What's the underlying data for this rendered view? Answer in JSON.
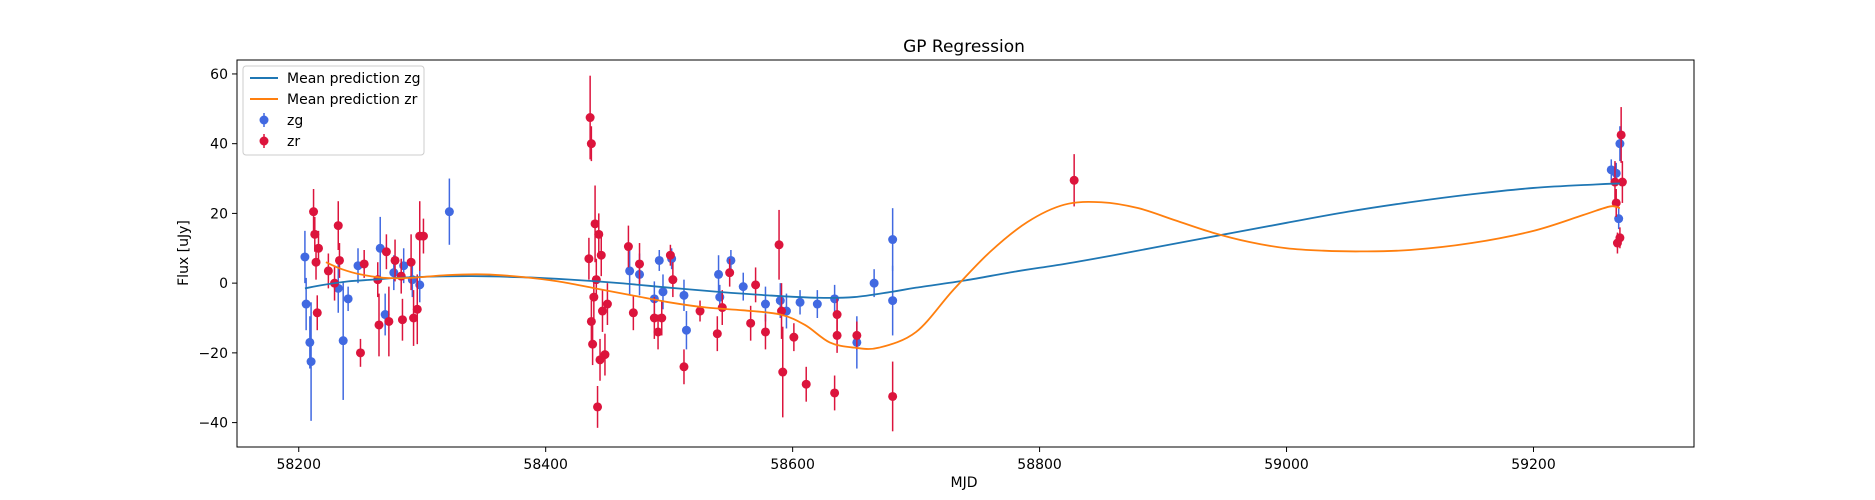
{
  "chart_data": {
    "type": "scatter",
    "title": "GP Regression",
    "xlabel": "MJD",
    "ylabel": "Flux [uJy]",
    "xlim": [
      58150,
      59330
    ],
    "ylim": [
      -47,
      64
    ],
    "xticks": [
      {
        "value": 58200,
        "label": "58200"
      },
      {
        "value": 58400,
        "label": "58400"
      },
      {
        "value": 58600,
        "label": "58600"
      },
      {
        "value": 58800,
        "label": "58800"
      },
      {
        "value": 59000,
        "label": "59000"
      },
      {
        "value": 59200,
        "label": "59200"
      }
    ],
    "yticks": [
      {
        "value": -40,
        "label": "−40"
      },
      {
        "value": -20,
        "label": "−20"
      },
      {
        "value": 0,
        "label": "0"
      },
      {
        "value": 20,
        "label": "20"
      },
      {
        "value": 40,
        "label": "40"
      },
      {
        "value": 60,
        "label": "60"
      }
    ],
    "grid": false,
    "legend_position": "top-left",
    "legend": [
      {
        "label": "Mean prediction zg",
        "kind": "line",
        "color": "#1f77b4"
      },
      {
        "label": "Mean prediction zr",
        "kind": "line",
        "color": "#ff7f0e"
      },
      {
        "label": "zg",
        "kind": "errorbar",
        "color": "#4169e1"
      },
      {
        "label": "zr",
        "kind": "errorbar",
        "color": "#dc143c"
      }
    ],
    "series": [
      {
        "name": "Mean prediction zg",
        "kind": "line",
        "color": "#1f77b4",
        "points": [
          [
            58205,
            -1.5
          ],
          [
            58220,
            -0.5
          ],
          [
            58240,
            0.5
          ],
          [
            58260,
            1.0
          ],
          [
            58280,
            1.5
          ],
          [
            58300,
            1.8
          ],
          [
            58340,
            2.0
          ],
          [
            58380,
            1.7
          ],
          [
            58420,
            1.0
          ],
          [
            58460,
            0.0
          ],
          [
            58500,
            -1.3
          ],
          [
            58540,
            -2.5
          ],
          [
            58580,
            -3.5
          ],
          [
            58620,
            -4.2
          ],
          [
            58650,
            -4.0
          ],
          [
            58680,
            -2.5
          ],
          [
            58700,
            -1.3
          ],
          [
            58740,
            0.8
          ],
          [
            58780,
            3.3
          ],
          [
            58820,
            5.5
          ],
          [
            58860,
            8.0
          ],
          [
            58900,
            10.7
          ],
          [
            58950,
            14.0
          ],
          [
            59000,
            17.3
          ],
          [
            59050,
            20.5
          ],
          [
            59100,
            23.2
          ],
          [
            59150,
            25.5
          ],
          [
            59200,
            27.3
          ],
          [
            59250,
            28.3
          ],
          [
            59270,
            28.6
          ]
        ]
      },
      {
        "name": "Mean prediction zr",
        "kind": "line",
        "color": "#ff7f0e",
        "points": [
          [
            58222,
            6.0
          ],
          [
            58235,
            4.0
          ],
          [
            58250,
            2.5
          ],
          [
            58270,
            1.5
          ],
          [
            58290,
            1.5
          ],
          [
            58320,
            2.3
          ],
          [
            58350,
            2.5
          ],
          [
            58380,
            1.8
          ],
          [
            58410,
            0.5
          ],
          [
            58440,
            -1.5
          ],
          [
            58470,
            -3.5
          ],
          [
            58500,
            -5.5
          ],
          [
            58530,
            -7.0
          ],
          [
            58560,
            -7.8
          ],
          [
            58590,
            -9.0
          ],
          [
            58610,
            -12.0
          ],
          [
            58630,
            -17.0
          ],
          [
            58650,
            -18.5
          ],
          [
            58670,
            -18.5
          ],
          [
            58700,
            -14.0
          ],
          [
            58730,
            -2.0
          ],
          [
            58760,
            9.0
          ],
          [
            58790,
            17.5
          ],
          [
            58820,
            22.5
          ],
          [
            58850,
            23.2
          ],
          [
            58880,
            21.5
          ],
          [
            58910,
            18.0
          ],
          [
            58940,
            14.5
          ],
          [
            58970,
            11.8
          ],
          [
            59000,
            10.0
          ],
          [
            59030,
            9.3
          ],
          [
            59060,
            9.1
          ],
          [
            59100,
            9.5
          ],
          [
            59150,
            11.5
          ],
          [
            59200,
            15.0
          ],
          [
            59240,
            19.5
          ],
          [
            59262,
            22.0
          ],
          [
            59270,
            21.5
          ]
        ]
      },
      {
        "name": "zg",
        "kind": "errorbar",
        "color": "#4169e1",
        "points": [
          [
            58205,
            7.5,
            7.5
          ],
          [
            58206,
            -6.0,
            7.5
          ],
          [
            58209,
            -17.0,
            7.5
          ],
          [
            58210,
            -22.5,
            17.0
          ],
          [
            58232,
            -1.5,
            7.0
          ],
          [
            58236,
            -16.5,
            17.0
          ],
          [
            58240,
            -4.5,
            3.5
          ],
          [
            58248,
            5.0,
            5.0
          ],
          [
            58266,
            10.0,
            9.0
          ],
          [
            58270,
            -9.0,
            6.0
          ],
          [
            58277,
            3.0,
            5.0
          ],
          [
            58285,
            5.0,
            5.0
          ],
          [
            58292,
            1.0,
            5.0
          ],
          [
            58298,
            -0.5,
            5.0
          ],
          [
            58322,
            20.5,
            9.5
          ],
          [
            58468,
            3.5,
            7.0
          ],
          [
            58476,
            2.5,
            6.0
          ],
          [
            58488,
            -4.5,
            5.0
          ],
          [
            58492,
            6.5,
            3.0
          ],
          [
            58495,
            -2.5,
            5.0
          ],
          [
            58502,
            7.0,
            3.0
          ],
          [
            58512,
            -3.5,
            4.5
          ],
          [
            58514,
            -13.5,
            5.5
          ],
          [
            58540,
            2.5,
            5.5
          ],
          [
            58541,
            -4.0,
            3.5
          ],
          [
            58550,
            6.5,
            3.0
          ],
          [
            58560,
            -1.0,
            4.0
          ],
          [
            58578,
            -6.0,
            5.0
          ],
          [
            58590,
            -5.0,
            5.0
          ],
          [
            58595,
            -8.0,
            5.0
          ],
          [
            58606,
            -5.5,
            3.5
          ],
          [
            58620,
            -6.0,
            4.0
          ],
          [
            58634,
            -4.5,
            4.0
          ],
          [
            58652,
            -17.0,
            7.5
          ],
          [
            58666,
            0.0,
            4.0
          ],
          [
            58681,
            12.5,
            9.0
          ],
          [
            58681,
            -5.0,
            10.0
          ],
          [
            59263,
            32.5,
            3.0
          ],
          [
            59267,
            31.5,
            3.0
          ],
          [
            59269,
            18.5,
            3.0
          ],
          [
            59270,
            40.0,
            5.0
          ]
        ]
      },
      {
        "name": "zr",
        "kind": "errorbar",
        "color": "#dc143c",
        "points": [
          [
            58212,
            20.5,
            6.5
          ],
          [
            58213,
            14.0,
            5.0
          ],
          [
            58214,
            6.0,
            5.0
          ],
          [
            58215,
            -8.5,
            5.0
          ],
          [
            58216,
            10.0,
            5.0
          ],
          [
            58224,
            3.5,
            5.0
          ],
          [
            58229,
            0.0,
            5.0
          ],
          [
            58232,
            16.5,
            7.0
          ],
          [
            58233,
            6.5,
            5.0
          ],
          [
            58250,
            -20.0,
            4.0
          ],
          [
            58253,
            5.5,
            4.0
          ],
          [
            58264,
            1.0,
            5.0
          ],
          [
            58265,
            -12.0,
            9.0
          ],
          [
            58271,
            9.0,
            5.0
          ],
          [
            58273,
            -11.0,
            10.0
          ],
          [
            58278,
            6.5,
            6.0
          ],
          [
            58283,
            2.0,
            5.0
          ],
          [
            58284,
            -10.5,
            6.0
          ],
          [
            58291,
            6.0,
            8.0
          ],
          [
            58293,
            -10.0,
            8.0
          ],
          [
            58296,
            -7.5,
            10.0
          ],
          [
            58298,
            13.5,
            10.0
          ],
          [
            58301,
            13.5,
            5.0
          ],
          [
            58436,
            47.5,
            12.0
          ],
          [
            58437,
            40.0,
            5.0
          ],
          [
            58435,
            7.0,
            6.0
          ],
          [
            58437,
            -11.0,
            6.0
          ],
          [
            58438,
            -17.5,
            6.0
          ],
          [
            58439,
            -4.0,
            6.0
          ],
          [
            58440,
            17.0,
            11.0
          ],
          [
            58441,
            1.0,
            6.0
          ],
          [
            58442,
            -35.5,
            6.0
          ],
          [
            58443,
            14.0,
            6.0
          ],
          [
            58444,
            -22.0,
            6.0
          ],
          [
            58445,
            8.0,
            6.0
          ],
          [
            58446,
            -8.0,
            6.0
          ],
          [
            58448,
            -20.5,
            6.0
          ],
          [
            58450,
            -6.0,
            6.0
          ],
          [
            58467,
            10.5,
            6.0
          ],
          [
            58471,
            -8.5,
            5.0
          ],
          [
            58476,
            5.5,
            6.0
          ],
          [
            58488,
            -10.0,
            6.0
          ],
          [
            58491,
            -14.0,
            5.0
          ],
          [
            58494,
            -10.0,
            5.0
          ],
          [
            58501,
            8.0,
            3.0
          ],
          [
            58503,
            1.0,
            5.0
          ],
          [
            58512,
            -24.0,
            5.0
          ],
          [
            58525,
            -8.0,
            3.0
          ],
          [
            58539,
            -14.5,
            5.0
          ],
          [
            58543,
            -7.0,
            5.0
          ],
          [
            58549,
            3.0,
            4.0
          ],
          [
            58566,
            -11.5,
            5.0
          ],
          [
            58570,
            -0.5,
            5.0
          ],
          [
            58578,
            -14.0,
            5.0
          ],
          [
            58589,
            11.0,
            10.0
          ],
          [
            58591,
            -8.0,
            8.0
          ],
          [
            58592,
            -25.5,
            13.0
          ],
          [
            58601,
            -15.5,
            4.0
          ],
          [
            58611,
            -29.0,
            5.0
          ],
          [
            58634,
            -31.5,
            5.0
          ],
          [
            58636,
            -15.0,
            5.0
          ],
          [
            58636,
            -9.0,
            5.0
          ],
          [
            58652,
            -15.0,
            4.0
          ],
          [
            58681,
            -32.5,
            10.0
          ],
          [
            58828,
            29.5,
            7.5
          ],
          [
            59267,
            23.0,
            4.0
          ],
          [
            59268,
            11.5,
            3.0
          ],
          [
            59270,
            13.0,
            3.0
          ],
          [
            59271,
            42.5,
            8.0
          ],
          [
            59272,
            29.0,
            6.0
          ],
          [
            59266,
            29.0,
            6.0
          ]
        ]
      }
    ]
  }
}
